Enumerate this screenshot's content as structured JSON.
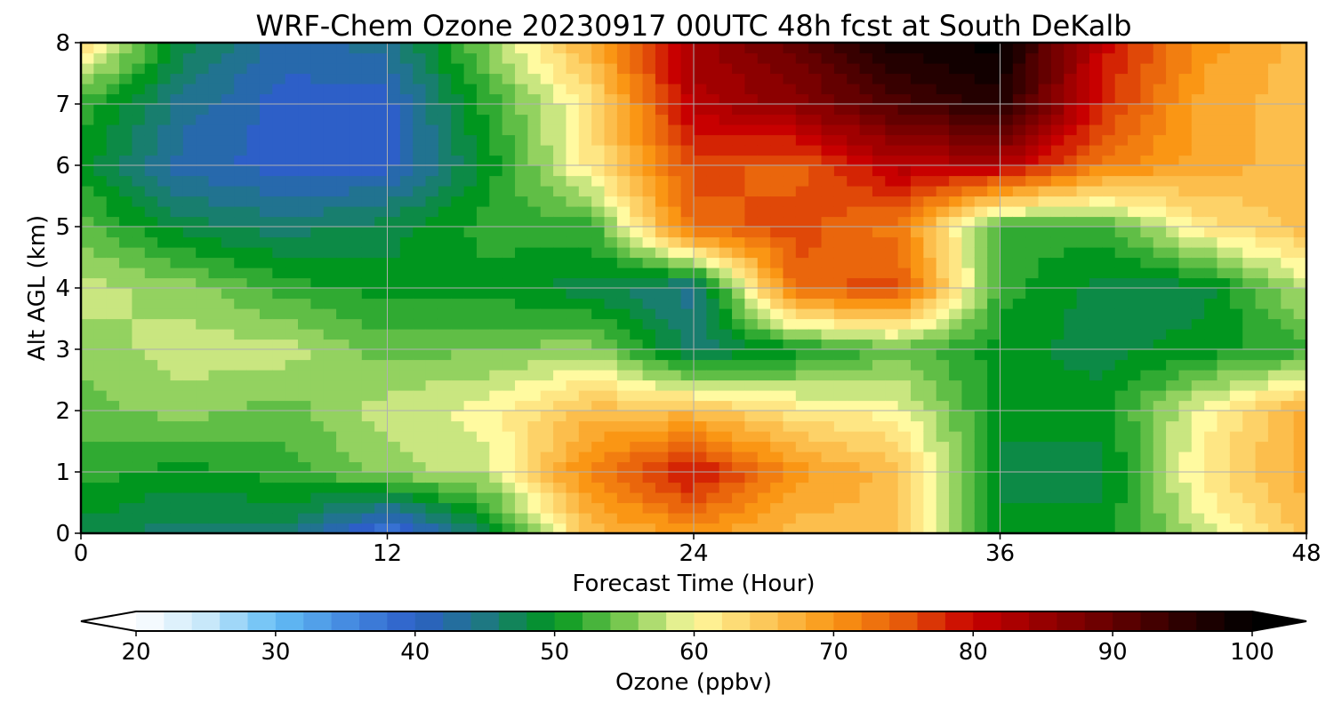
{
  "chart_data": {
    "type": "heatmap",
    "title": "WRF-Chem Ozone  20230917 00UTC 48h fcst at South DeKalb",
    "xlabel": "Forecast Time (Hour)",
    "ylabel": "Alt AGL (km)",
    "xlim": [
      0,
      48
    ],
    "ylim": [
      0,
      8
    ],
    "x_ticks": [
      "0",
      "12",
      "24",
      "36",
      "48"
    ],
    "y_ticks": [
      "0",
      "1",
      "2",
      "3",
      "4",
      "5",
      "6",
      "7",
      "8"
    ],
    "grid": true,
    "units": "ppbv",
    "colorbar": {
      "label": "Ozone  (ppbv)",
      "min": 20,
      "max": 100,
      "ticks": [
        "20",
        "30",
        "40",
        "50",
        "60",
        "70",
        "80",
        "90",
        "100"
      ],
      "extend": "both",
      "placement": "bottom"
    },
    "x": [
      0,
      4,
      8,
      12,
      16,
      20,
      24,
      28,
      32,
      36,
      40,
      44,
      48
    ],
    "y": [
      0,
      1,
      2,
      3,
      4,
      5,
      6,
      7,
      8
    ],
    "z": [
      [
        48,
        46,
        46,
        36,
        48,
        66,
        70,
        66,
        66,
        50,
        50,
        58,
        66
      ],
      [
        52,
        50,
        52,
        56,
        58,
        72,
        80,
        70,
        66,
        48,
        48,
        62,
        68
      ],
      [
        54,
        56,
        54,
        58,
        60,
        66,
        66,
        62,
        60,
        50,
        50,
        60,
        68
      ],
      [
        56,
        58,
        58,
        54,
        55,
        56,
        46,
        50,
        54,
        50,
        48,
        50,
        52
      ],
      [
        58,
        56,
        52,
        50,
        50,
        48,
        44,
        74,
        76,
        52,
        48,
        48,
        58
      ],
      [
        54,
        48,
        46,
        48,
        52,
        52,
        74,
        76,
        72,
        52,
        52,
        62,
        66
      ],
      [
        50,
        42,
        40,
        40,
        50,
        62,
        76,
        74,
        82,
        82,
        72,
        68,
        66
      ],
      [
        52,
        44,
        40,
        40,
        52,
        62,
        82,
        86,
        92,
        96,
        78,
        68,
        66
      ],
      [
        64,
        48,
        42,
        44,
        56,
        68,
        84,
        90,
        98,
        100,
        80,
        70,
        66
      ]
    ]
  }
}
